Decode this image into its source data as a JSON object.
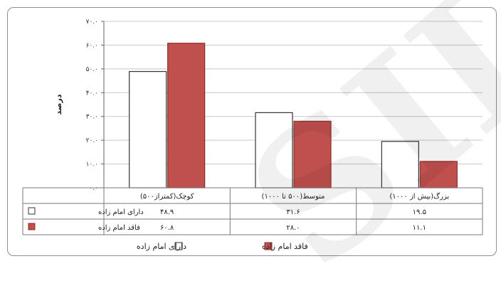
{
  "chart_data": {
    "type": "bar",
    "categories": [
      "کوچک(کمتراز۵۰۰)",
      "متوسط(۵۰۰ تا ۱۰۰۰)",
      "بزرگ(بیش از ۱۰۰۰)"
    ],
    "series": [
      {
        "name": "دارای امام زاده",
        "values": [
          48.9,
          31.6,
          19.5
        ],
        "color": "#ffffff",
        "stroke": "#333333"
      },
      {
        "name": "فاقد امام زاده",
        "values": [
          60.8,
          28.0,
          11.1
        ],
        "color": "#c0504d",
        "stroke": "#8b2f2b"
      }
    ],
    "ylabel": "درصد",
    "ylim": [
      0,
      70
    ],
    "yticks": [
      0,
      10,
      20,
      30,
      40,
      50,
      60,
      70
    ],
    "ytick_labels": [
      "۰.۰",
      "۱۰.۰",
      "۲۰.۰",
      "۳۰.۰",
      "۴۰.۰",
      "۵۰.۰",
      "۶۰.۰",
      "۷۰.۰"
    ],
    "table": {
      "row_labels": [
        "دارای امام زاده",
        "فاقد امام زاده"
      ],
      "values": [
        [
          "۴۸.۹",
          "۳۱.۶",
          "۱۹.۵"
        ],
        [
          "۶۰.۸",
          "۲۸.۰",
          "۱۱.۱"
        ]
      ]
    },
    "legend": {
      "position": "bottom",
      "items": [
        "فاقد امام زاده",
        "دارای امام زاده"
      ]
    },
    "grid": true
  },
  "watermark": "SID"
}
